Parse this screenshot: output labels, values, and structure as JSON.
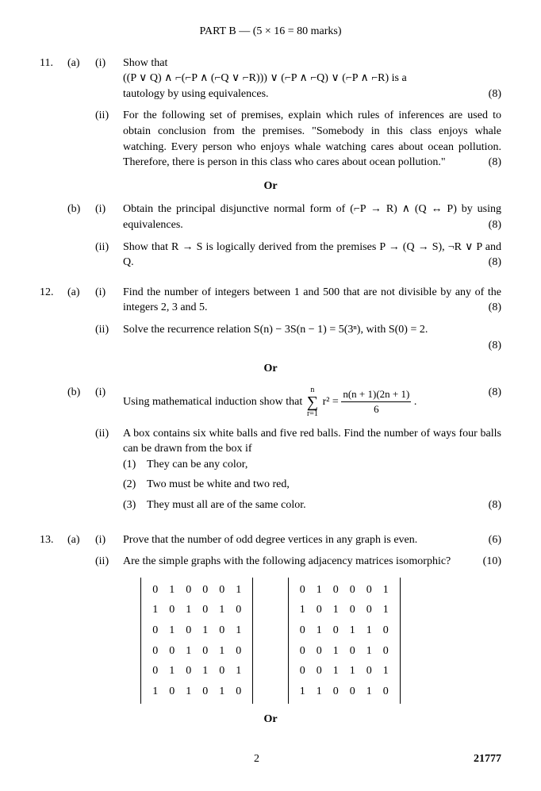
{
  "header": "PART B — (5 × 16 = 80 marks)",
  "q11": {
    "num": "11.",
    "a": "(a)",
    "b": "(b)",
    "i": "(i)",
    "ii": "(ii)",
    "a_i_intro": "Show that",
    "a_i_formula": "((P ∨ Q) ∧ ⌐(⌐P ∧ (⌐Q ∨ ⌐R))) ∨ (⌐P ∧ ⌐Q) ∨ (⌐P ∧ ⌐R)   is   a",
    "a_i_end": "tautology by using equivalences.",
    "a_i_marks": "(8)",
    "a_ii_text": "For the following set of premises, explain which rules of inferences are used to obtain conclusion from the premises. \"Somebody in this class enjoys whale watching. Every person who enjoys whale watching cares about ocean pollution. Therefore, there is person in this class who cares about ocean pollution.\"",
    "a_ii_marks": "(8)",
    "or": "Or",
    "b_i_text": "Obtain    the    principal    disjunctive    normal    form    of (⌐P → R) ∧ (Q ↔ P) by using equivalences.",
    "b_i_marks": "(8)",
    "b_ii_text": "Show  that  R → S  is  logically  derived  from  the  premises P → (Q → S), ¬R ∨ P and Q.",
    "b_ii_marks": "(8)"
  },
  "q12": {
    "num": "12.",
    "a": "(a)",
    "b": "(b)",
    "i": "(i)",
    "ii": "(ii)",
    "a_i_text": "Find the number of integers between 1 and 500 that are not divisible by any of the integers 2, 3 and 5.",
    "a_i_marks": "(8)",
    "a_ii_text": "Solve the recurrence relation S(n) − 3S(n − 1) = 5(3ⁿ), with S(0) = 2.",
    "a_ii_marks": "(8)",
    "or": "Or",
    "b_i_text": "Using mathematical induction show that ",
    "b_i_sum_top": "n",
    "b_i_sum_bot": "r=1",
    "b_i_sum_body": " r² = ",
    "b_i_frac_num": "n(n + 1)(2n + 1)",
    "b_i_frac_den": "6",
    "b_i_end": ".",
    "b_i_marks": "(8)",
    "b_ii_text": "A box contains six white balls and five red balls. Find the number of ways four balls can be drawn from the box if",
    "b_ii_1": "They can be any color,",
    "b_ii_2": "Two must be white and two red,",
    "b_ii_3": "They must all are of the same color.",
    "b_ii_marks": "(8)",
    "s1": "(1)",
    "s2": "(2)",
    "s3": "(3)"
  },
  "q13": {
    "num": "13.",
    "a": "(a)",
    "i": "(i)",
    "ii": "(ii)",
    "a_i_text": "Prove that the number of odd degree vertices in any graph is even.",
    "a_i_marks": "(6)",
    "a_ii_text": "Are the simple graphs with the following adjacency matrices isomorphic?",
    "a_ii_marks": "(10)",
    "or": "Or",
    "matrix1": [
      [
        "0",
        "1",
        "0",
        "0",
        "0",
        "1"
      ],
      [
        "1",
        "0",
        "1",
        "0",
        "1",
        "0"
      ],
      [
        "0",
        "1",
        "0",
        "1",
        "0",
        "1"
      ],
      [
        "0",
        "0",
        "1",
        "0",
        "1",
        "0"
      ],
      [
        "0",
        "1",
        "0",
        "1",
        "0",
        "1"
      ],
      [
        "1",
        "0",
        "1",
        "0",
        "1",
        "0"
      ]
    ],
    "matrix2": [
      [
        "0",
        "1",
        "0",
        "0",
        "0",
        "1"
      ],
      [
        "1",
        "0",
        "1",
        "0",
        "0",
        "1"
      ],
      [
        "0",
        "1",
        "0",
        "1",
        "1",
        "0"
      ],
      [
        "0",
        "0",
        "1",
        "0",
        "1",
        "0"
      ],
      [
        "0",
        "0",
        "1",
        "1",
        "0",
        "1"
      ],
      [
        "1",
        "1",
        "0",
        "0",
        "1",
        "0"
      ]
    ]
  },
  "footer": {
    "page": "2",
    "code": "21777"
  }
}
